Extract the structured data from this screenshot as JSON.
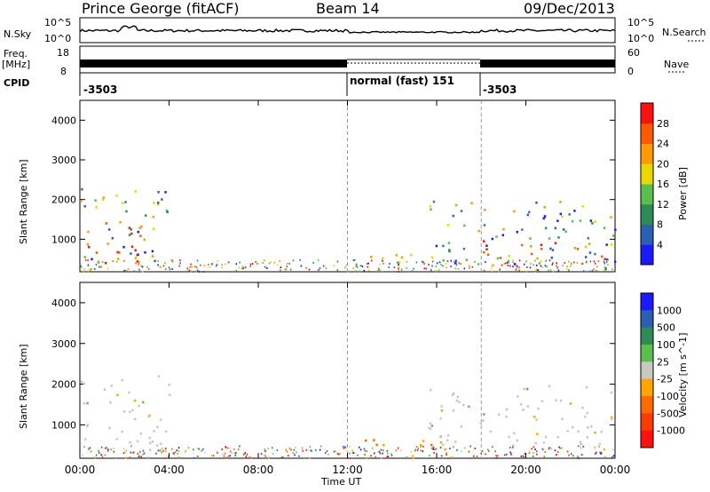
{
  "header": {
    "station": "Prince George (fitACF)",
    "beam": "Beam 14",
    "date": "09/Dec/2013"
  },
  "strip_labels": {
    "nsky": "N.Sky",
    "nsky_top": "10^5",
    "nsky_bot": "10^0",
    "nsearch": "N.Search",
    "nsearch_top": "10^5",
    "nsearch_bot": "10^0",
    "freq": "Freq.",
    "freq_unit": "[MHz]",
    "freq_top": "18",
    "freq_bot": "8",
    "nave": "Nave",
    "nave_top": "60",
    "nave_bot": "0",
    "cpid": "CPID"
  },
  "cpid_segments": [
    {
      "start_h": 0,
      "end_h": 12,
      "label": "-3503"
    },
    {
      "start_h": 12,
      "end_h": 18,
      "label": "normal (fast) 151"
    },
    {
      "start_h": 18,
      "end_h": 24,
      "label": "-3503"
    }
  ],
  "chart_data": [
    {
      "type": "heatmap",
      "xlabel": "Time UT",
      "ylabel": "Slant Range [km]",
      "x_range_hours": [
        0,
        24
      ],
      "ylim": [
        180,
        4500
      ],
      "x_ticks": [
        "00:00",
        "04:00",
        "08:00",
        "12:00",
        "16:00",
        "20:00",
        "00:00"
      ],
      "y_ticks": [
        1000,
        2000,
        3000,
        4000
      ],
      "colorbar": {
        "label": "Power [dB]",
        "ticks": [
          "4",
          "8",
          "12",
          "16",
          "20",
          "24",
          "28"
        ],
        "colors": [
          "#1a1aff",
          "#2b5fb3",
          "#2e8b57",
          "#5bbf4f",
          "#e8d800",
          "#ff9a00",
          "#ff5a00",
          "#ff1010"
        ]
      },
      "regions": [
        {
          "t0": 0.0,
          "t1": 2.8,
          "r0": 400,
          "r1": 1700,
          "value": "high"
        },
        {
          "t0": 0.0,
          "t1": 4.0,
          "r0": 400,
          "r1": 2300,
          "value": "mixed"
        },
        {
          "t0": 12.0,
          "t1": 16.0,
          "r0": 400,
          "r1": 700,
          "value": "medium"
        },
        {
          "t0": 15.5,
          "t1": 24.0,
          "r0": 400,
          "r1": 2000,
          "value": "mixed"
        },
        {
          "t0": 18.0,
          "t1": 24.0,
          "r0": 500,
          "r1": 1000,
          "value": "high"
        }
      ]
    },
    {
      "type": "heatmap",
      "xlabel": "Time UT",
      "ylabel": "Slant Range [km]",
      "x_range_hours": [
        0,
        24
      ],
      "ylim": [
        180,
        4500
      ],
      "x_ticks": [
        "00:00",
        "04:00",
        "08:00",
        "12:00",
        "16:00",
        "20:00",
        "00:00"
      ],
      "y_ticks": [
        1000,
        2000,
        3000,
        4000
      ],
      "colorbar": {
        "label": "Velocity [m s^-1]",
        "ticks": [
          "1000",
          "500",
          "100",
          "25",
          "-25",
          "-100",
          "-500",
          "-1000"
        ],
        "colors": [
          "#1a1aff",
          "#2b5fb3",
          "#2e8b57",
          "#5bbf4f",
          "#c8c8c0",
          "#ffa500",
          "#ff6a00",
          "#ff3a00",
          "#ff1010"
        ]
      },
      "regions": [
        {
          "t0": 0.0,
          "t1": 4.0,
          "r0": 400,
          "r1": 2300,
          "value": "near-zero"
        },
        {
          "t0": 12.0,
          "t1": 16.0,
          "r0": 400,
          "r1": 700,
          "value": "-100"
        },
        {
          "t0": 15.5,
          "t1": 24.0,
          "r0": 400,
          "r1": 2000,
          "value": "near-zero"
        }
      ]
    }
  ]
}
